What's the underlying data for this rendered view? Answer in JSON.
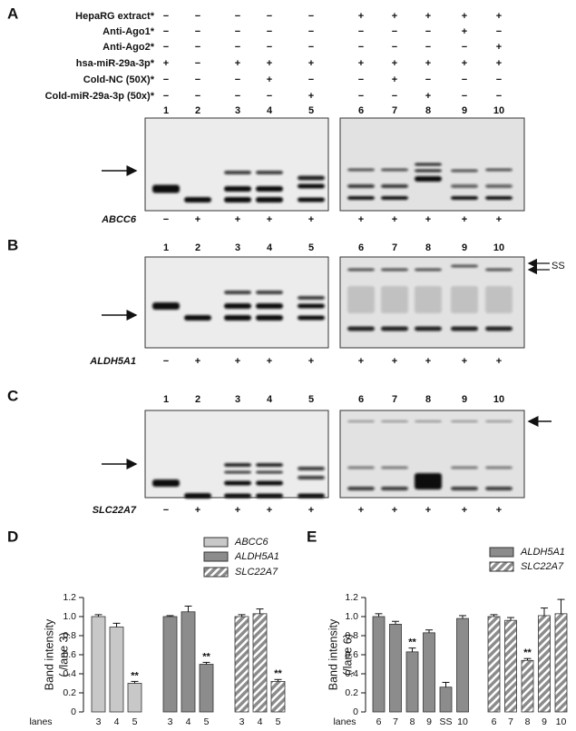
{
  "panels": {
    "a": "A",
    "b": "B",
    "c": "C",
    "d": "D",
    "e": "E"
  },
  "conditions": [
    {
      "label": "HepaRG extract*",
      "marks": [
        "−",
        "−",
        "−",
        "−",
        "−",
        "+",
        "+",
        "+",
        "+",
        "+"
      ]
    },
    {
      "label": "Anti-Ago1*",
      "marks": [
        "−",
        "−",
        "−",
        "−",
        "−",
        "−",
        "−",
        "−",
        "+",
        "−"
      ]
    },
    {
      "label": "Anti-Ago2*",
      "marks": [
        "−",
        "−",
        "−",
        "−",
        "−",
        "−",
        "−",
        "−",
        "−",
        "+"
      ]
    },
    {
      "label": "hsa-miR-29a-3p*",
      "marks": [
        "+",
        "−",
        "+",
        "+",
        "+",
        "+",
        "+",
        "+",
        "+",
        "+"
      ]
    },
    {
      "label": "Cold-NC (50X)*",
      "marks": [
        "−",
        "−",
        "−",
        "+",
        "−",
        "−",
        "+",
        "−",
        "−",
        "−"
      ]
    },
    {
      "label": "Cold-miR-29a-3p (50x)*",
      "marks": [
        "−",
        "−",
        "−",
        "−",
        "+",
        "−",
        "−",
        "+",
        "−",
        "−"
      ]
    }
  ],
  "lanes": [
    "1",
    "2",
    "3",
    "4",
    "5",
    "6",
    "7",
    "8",
    "9",
    "10"
  ],
  "gels": [
    {
      "gene": "ABCC6",
      "marks": [
        "−",
        "+",
        "+",
        "+",
        "+",
        "+",
        "+",
        "+",
        "+",
        "+"
      ]
    },
    {
      "gene": "ALDH5A1",
      "marks": [
        "−",
        "+",
        "+",
        "+",
        "+",
        "+",
        "+",
        "+",
        "+",
        "+"
      ],
      "marker": "SS"
    },
    {
      "gene": "SLC22A7",
      "marks": [
        "−",
        "+",
        "+",
        "+",
        "+",
        "+",
        "+",
        "+",
        "+",
        "+"
      ]
    }
  ],
  "chart_data": [
    {
      "type": "bar",
      "ylabel": [
        "Band intensity",
        "( /lane 3)"
      ],
      "xlabel": "lanes",
      "ylim": [
        0,
        1.2
      ],
      "yticks": [
        0,
        0.2,
        0.4,
        0.6,
        0.8,
        {
          "value": 1,
          "label": "1.0"
        },
        1.2
      ],
      "series": [
        {
          "name": "ABCC6",
          "color": "#c8c8c8",
          "categories": [
            "3",
            "4",
            "5"
          ],
          "values": [
            1.0,
            0.89,
            0.3
          ],
          "errors": [
            0.02,
            0.04,
            0.02
          ],
          "significance": [
            null,
            null,
            "**"
          ]
        },
        {
          "name": "ALDH5A1",
          "color": "#8c8c8c",
          "categories": [
            "3",
            "4",
            "5"
          ],
          "values": [
            1.0,
            1.05,
            0.5
          ],
          "errors": [
            0.01,
            0.06,
            0.02
          ],
          "significance": [
            null,
            null,
            "**"
          ]
        },
        {
          "name": "SLC22A7",
          "color": "#8c8c8c",
          "pattern": "hatch",
          "categories": [
            "3",
            "4",
            "5"
          ],
          "values": [
            1.0,
            1.03,
            0.32
          ],
          "errors": [
            0.02,
            0.05,
            0.02
          ],
          "significance": [
            null,
            null,
            "**"
          ]
        }
      ]
    },
    {
      "type": "bar",
      "ylabel": [
        "Band intensity",
        "(/lane 6)"
      ],
      "xlabel": "lanes",
      "ylim": [
        0,
        1.2
      ],
      "yticks": [
        0,
        0.2,
        0.4,
        0.6,
        0.8,
        {
          "value": 1,
          "label": "1.0"
        },
        1.2
      ],
      "series": [
        {
          "name": "ALDH5A1",
          "color": "#8c8c8c",
          "categories": [
            "6",
            "7",
            "8",
            "9",
            "SS",
            "10"
          ],
          "values": [
            1.0,
            0.92,
            0.63,
            0.83,
            0.26,
            0.98
          ],
          "errors": [
            0.03,
            0.03,
            0.04,
            0.03,
            0.05,
            0.03
          ],
          "significance": [
            null,
            null,
            "**",
            null,
            null,
            null
          ]
        },
        {
          "name": "SLC22A7",
          "color": "#8c8c8c",
          "pattern": "hatch",
          "categories": [
            "6",
            "7",
            "8",
            "9",
            "10"
          ],
          "values": [
            1.0,
            0.96,
            0.54,
            1.01,
            1.03
          ],
          "errors": [
            0.02,
            0.03,
            0.02,
            0.08,
            0.15
          ],
          "significance": [
            null,
            null,
            "**",
            null,
            null
          ]
        }
      ]
    }
  ]
}
